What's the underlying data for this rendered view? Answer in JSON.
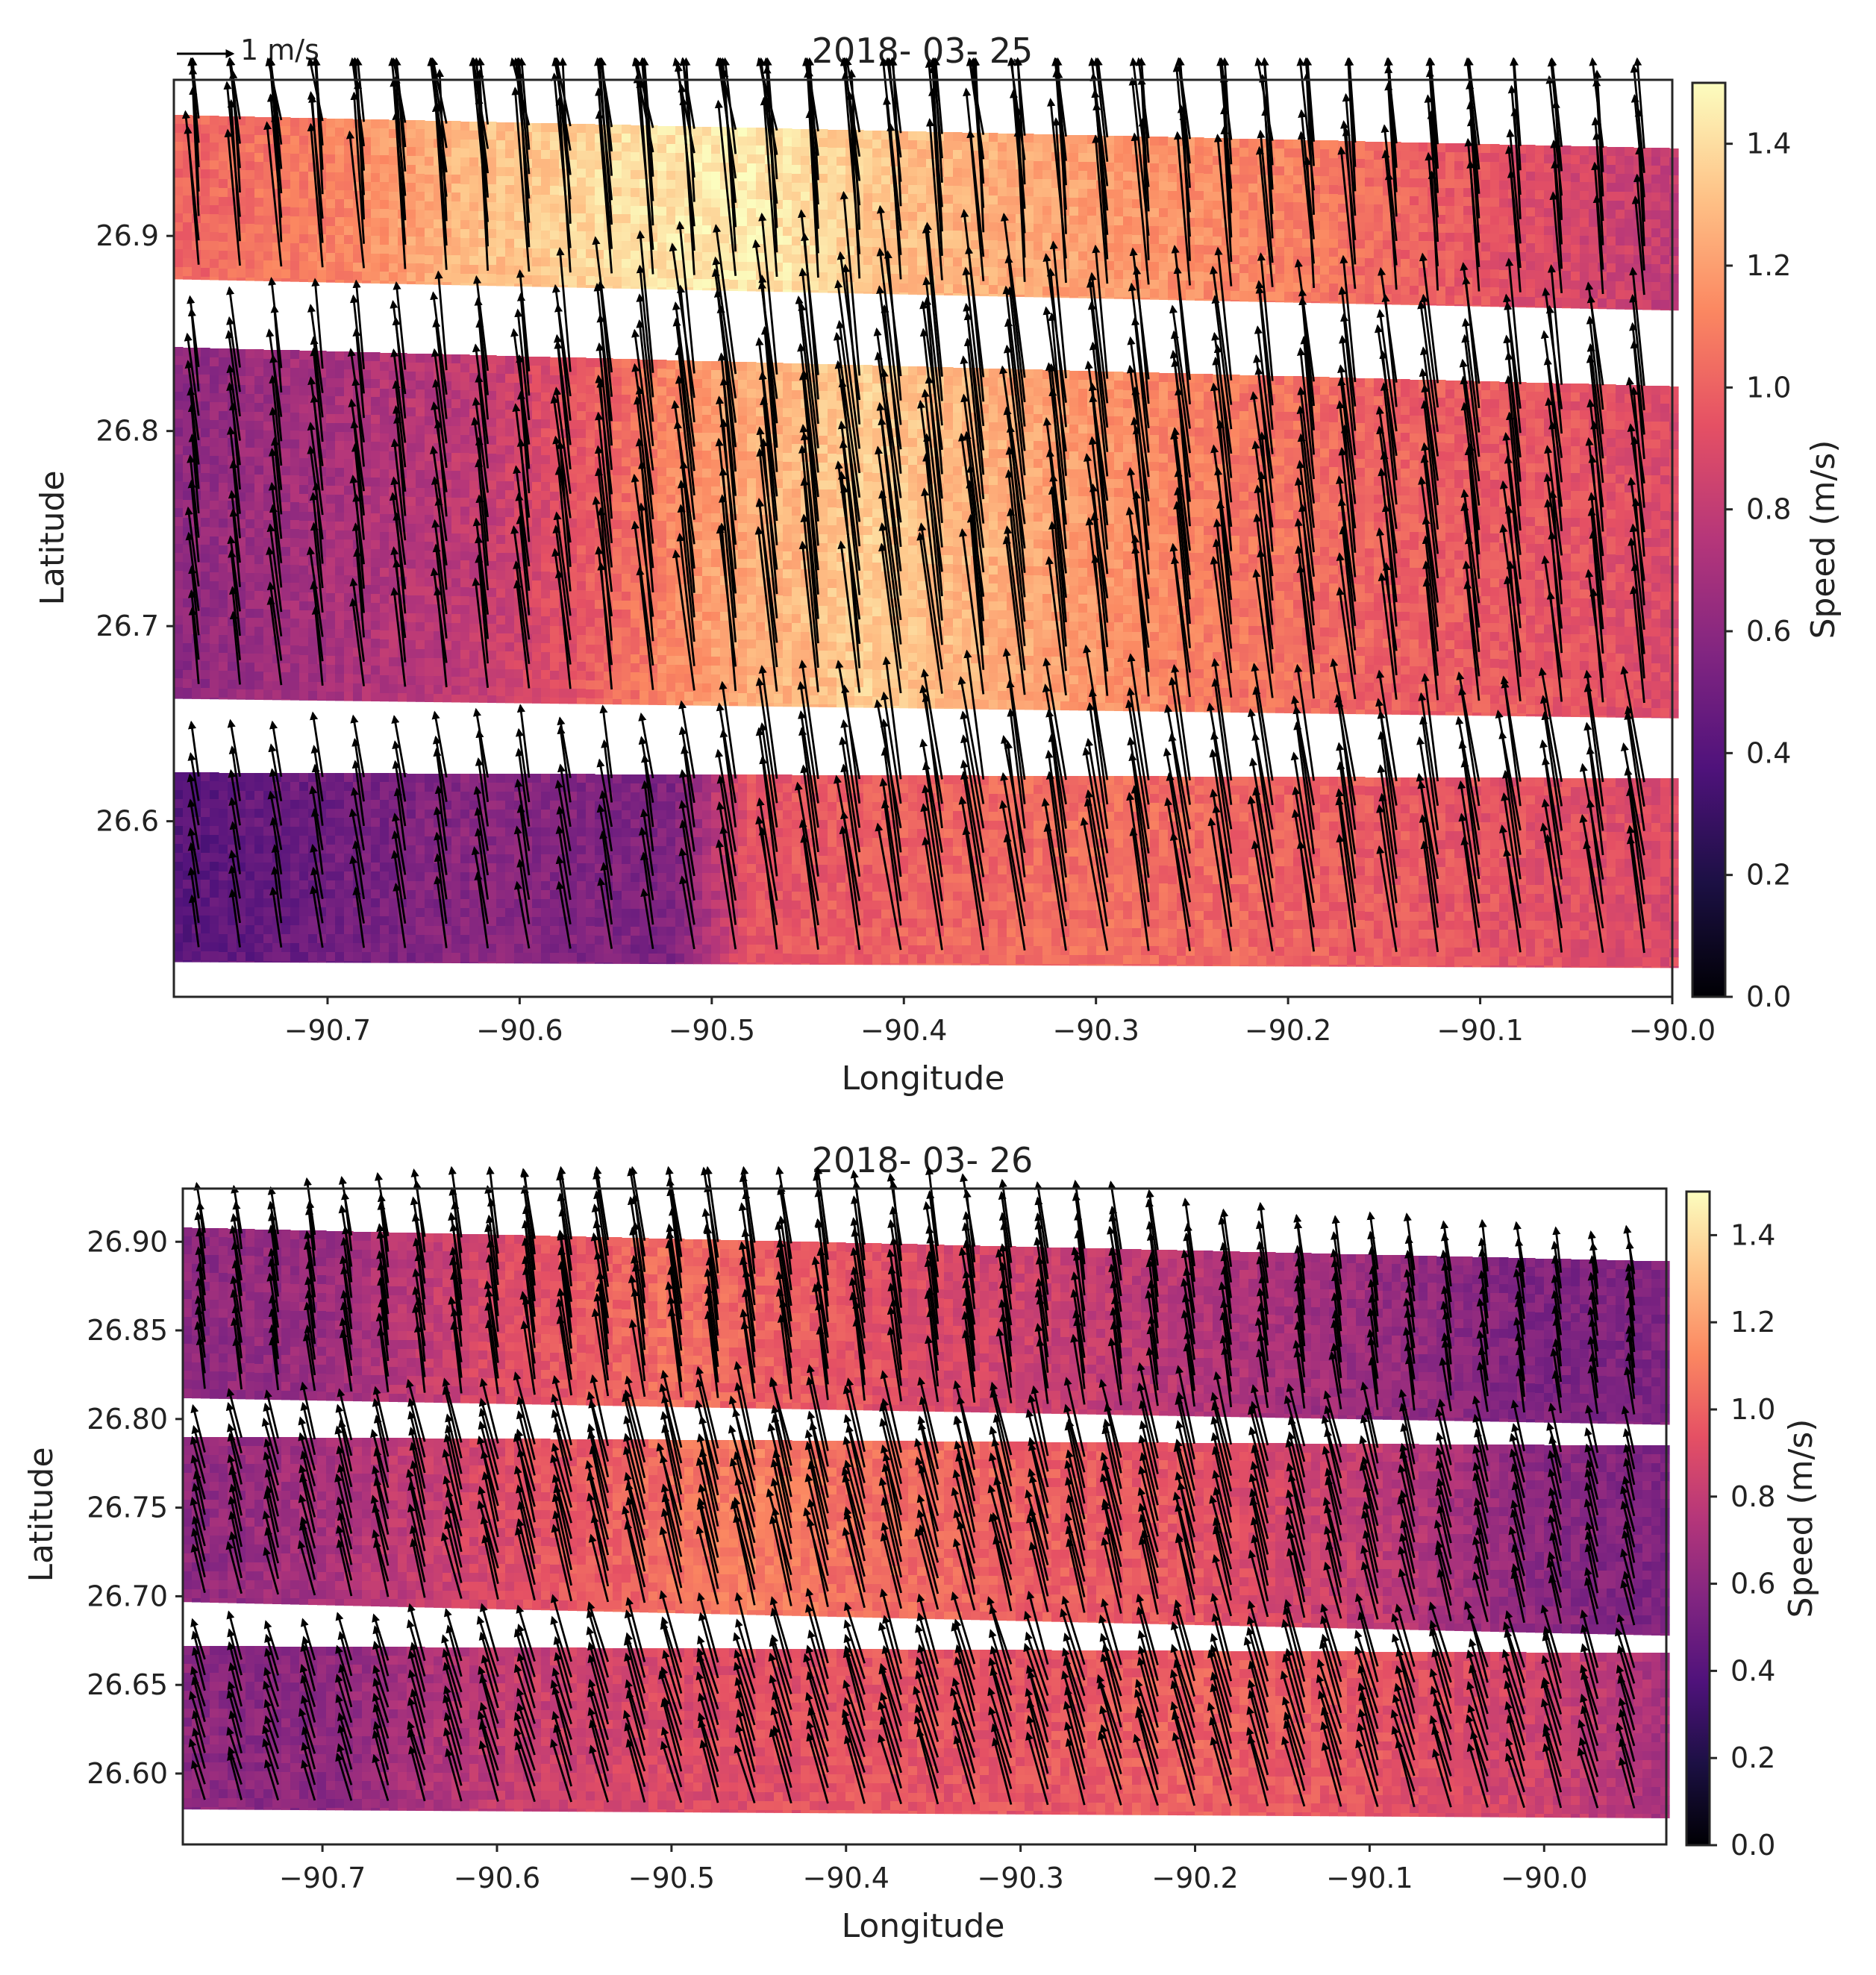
{
  "figure": {
    "quiver_key_label": "1 m/s",
    "quiver_key_speed": 1.0
  },
  "colorbar": {
    "label": "Speed (m/s)",
    "range": [
      0.0,
      1.5
    ],
    "ticks": [
      "0.0",
      "0.2",
      "0.4",
      "0.6",
      "0.8",
      "1.0",
      "1.2",
      "1.4"
    ],
    "colormap": "magma",
    "stops": [
      "#000004",
      "#1c1044",
      "#4f127b",
      "#812581",
      "#b5367a",
      "#e55064",
      "#fb8761",
      "#fec287",
      "#fcfdbf"
    ]
  },
  "chart_data": [
    {
      "type": "heatmap",
      "subtype": "surface current speed with velocity vectors (quiver)",
      "title": "2018- 03- 25",
      "xlabel": "Longitude",
      "ylabel": "Latitude",
      "xlim": [
        -90.78,
        -90.0
      ],
      "ylim": [
        26.51,
        26.98
      ],
      "xticks": [
        -90.7,
        -90.6,
        -90.5,
        -90.4,
        -90.3,
        -90.2,
        -90.1,
        -90.0
      ],
      "xtick_labels": [
        "−90.7",
        "−90.6",
        "−90.5",
        "−90.4",
        "−90.3",
        "−90.2",
        "−90.1",
        "−90.0"
      ],
      "yticks": [
        26.6,
        26.7,
        26.8,
        26.9
      ],
      "ytick_labels": [
        "26.6",
        "26.7",
        "26.8",
        "26.9"
      ],
      "bands": [
        {
          "lat_west": [
            26.878,
            26.962
          ],
          "lat_east": [
            26.862,
            26.945
          ],
          "speed_profile": {
            "lon": [
              -90.78,
              -90.7,
              -90.62,
              -90.55,
              -90.48,
              -90.4,
              -90.3,
              -90.2,
              -90.1,
              -90.0
            ],
            "speed": [
              1.0,
              1.1,
              1.3,
              1.4,
              1.45,
              1.3,
              1.2,
              1.1,
              0.95,
              0.8
            ]
          },
          "direction_deg": 100
        },
        {
          "lat_west": [
            26.663,
            26.843
          ],
          "lat_east": [
            26.653,
            26.823
          ],
          "speed_profile": {
            "lon": [
              -90.78,
              -90.7,
              -90.62,
              -90.57,
              -90.5,
              -90.42,
              -90.35,
              -90.25,
              -90.15,
              -90.05,
              -90.0
            ],
            "speed": [
              0.6,
              0.7,
              0.8,
              0.95,
              1.2,
              1.35,
              1.25,
              1.1,
              1.0,
              0.95,
              0.9
            ]
          },
          "direction_deg": 105
        },
        {
          "lat_west": [
            26.528,
            26.625
          ],
          "lat_east": [
            26.525,
            26.622
          ],
          "speed_profile": {
            "lon": [
              -90.78,
              -90.7,
              -90.62,
              -90.55,
              -90.52,
              -90.48,
              -90.4,
              -90.3,
              -90.2,
              -90.1,
              -90.0
            ],
            "speed": [
              0.4,
              0.5,
              0.6,
              0.55,
              0.55,
              0.95,
              1.0,
              1.05,
              1.0,
              0.95,
              0.9
            ]
          },
          "direction_deg": 110
        }
      ],
      "vector_grid": {
        "dlon": 0.0215,
        "dlat": 0.0125
      }
    },
    {
      "type": "heatmap",
      "subtype": "surface current speed with velocity vectors (quiver)",
      "title": "2018- 03- 26",
      "xlabel": "Longitude",
      "ylabel": "Latitude",
      "xlim": [
        -90.78,
        -89.93
      ],
      "ylim": [
        26.56,
        26.93
      ],
      "xticks": [
        -90.7,
        -90.6,
        -90.5,
        -90.4,
        -90.3,
        -90.2,
        -90.1,
        -90.0
      ],
      "xtick_labels": [
        "−90.7",
        "−90.6",
        "−90.5",
        "−90.4",
        "−90.3",
        "−90.2",
        "−90.1",
        "−90.0"
      ],
      "yticks": [
        26.6,
        26.65,
        26.7,
        26.75,
        26.8,
        26.85,
        26.9
      ],
      "ytick_labels": [
        "26.60",
        "26.65",
        "26.70",
        "26.75",
        "26.80",
        "26.85",
        "26.90"
      ],
      "bands": [
        {
          "lat_west": [
            26.812,
            26.908
          ],
          "lat_east": [
            26.797,
            26.889
          ],
          "speed_profile": {
            "lon": [
              -90.78,
              -90.7,
              -90.6,
              -90.5,
              -90.4,
              -90.3,
              -90.2,
              -90.1,
              -90.0,
              -89.93
            ],
            "speed": [
              0.6,
              0.65,
              0.9,
              1.05,
              0.95,
              0.85,
              0.75,
              0.65,
              0.55,
              0.55
            ]
          },
          "direction_deg": 108
        },
        {
          "lat_west": [
            26.697,
            26.79
          ],
          "lat_east": [
            26.678,
            26.785
          ],
          "speed_profile": {
            "lon": [
              -90.78,
              -90.7,
              -90.6,
              -90.5,
              -90.45,
              -90.4,
              -90.3,
              -90.2,
              -90.1,
              -90.0,
              -89.93
            ],
            "speed": [
              0.6,
              0.7,
              0.9,
              1.05,
              1.1,
              1.05,
              1.0,
              0.95,
              0.8,
              0.6,
              0.55
            ]
          },
          "direction_deg": 120
        },
        {
          "lat_west": [
            26.58,
            26.672
          ],
          "lat_east": [
            26.575,
            26.668
          ],
          "speed_profile": {
            "lon": [
              -90.78,
              -90.7,
              -90.6,
              -90.5,
              -90.4,
              -90.3,
              -90.2,
              -90.1,
              -90.0,
              -89.93
            ],
            "speed": [
              0.6,
              0.6,
              0.8,
              0.9,
              0.95,
              0.95,
              1.0,
              0.95,
              0.85,
              0.7
            ]
          },
          "direction_deg": 125
        }
      ],
      "vector_grid": {
        "dlon": 0.021,
        "dlat": 0.0088
      }
    }
  ]
}
